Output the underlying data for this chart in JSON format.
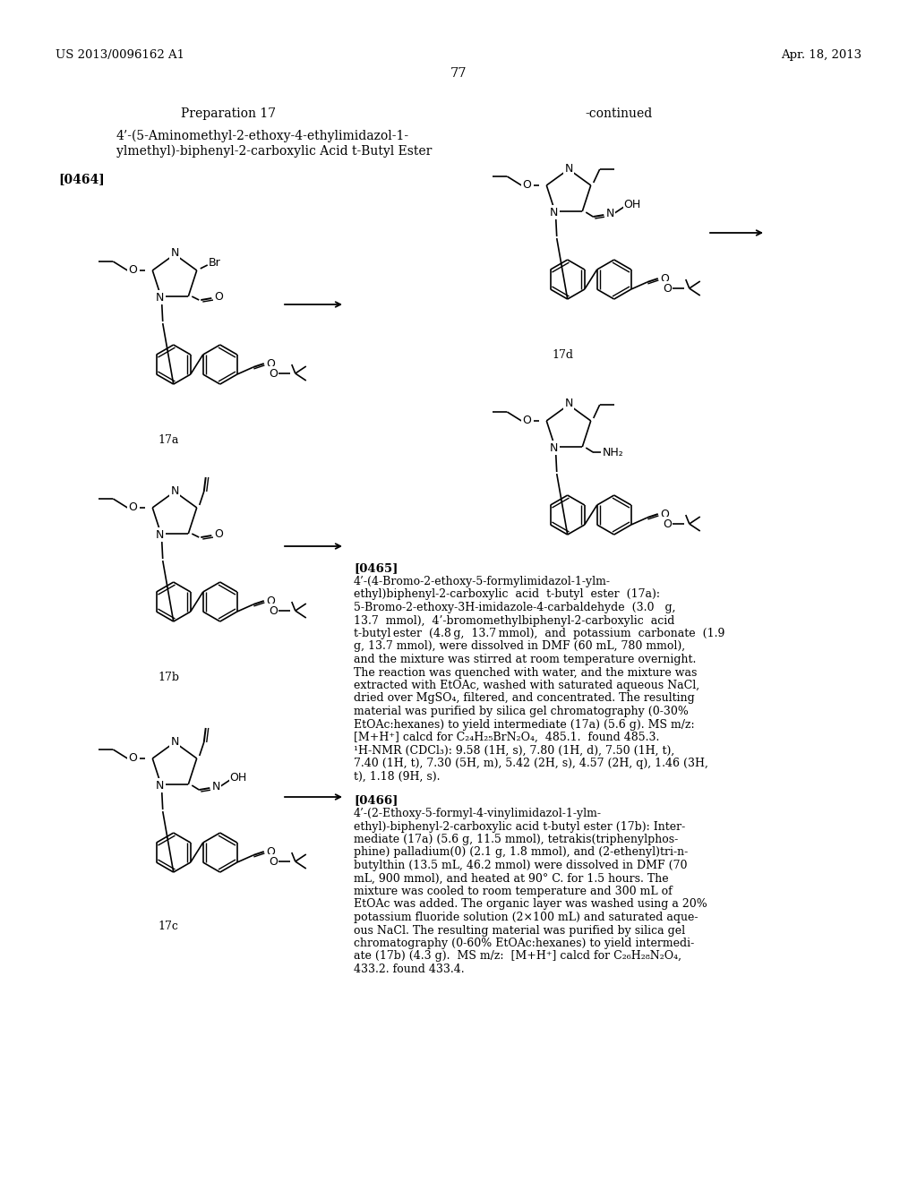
{
  "background_color": "#ffffff",
  "page_number": "77",
  "header_left": "US 2013/0096162 A1",
  "header_right": "Apr. 18, 2013",
  "preparation_title": "Preparation 17",
  "compound_line1": "4’-(5-Aminomethyl-2-ethoxy-4-ethylimidazol-1-",
  "compound_line2": "ylmethyl)-biphenyl-2-carboxylic Acid t-Butyl Ester",
  "paragraph_ref_1": "[0464]",
  "continued_label": "-continued",
  "label_17a": "17a",
  "label_17b": "17b",
  "label_17c": "17c",
  "label_17d": "17d",
  "paragraph_ref_2": "[0465]",
  "paragraph_ref_3": "[0466]",
  "text_0465": "4’-(4-Bromo-2-ethoxy-5-formylimidazol-1-ylm-\nethyl)biphenyl-2-carboxylic  acid  t-butyl  ester  (17a):\n5-Bromo-2-ethoxy-3H-imidazole-4-carbaldehyde  (3.0   g,\n13.7  mmol),  4’-bromomethylbiphenyl-2-carboxylic  acid\nt-butyl ester  (4.8 g,  13.7 mmol),  and  potassium  carbonate  (1.9\ng, 13.7 mmol), were dissolved in DMF (60 mL, 780 mmol),\nand the mixture was stirred at room temperature overnight.\nThe reaction was quenched with water, and the mixture was\nextracted with EtOAc, washed with saturated aqueous NaCl,\ndried over MgSO₄, filtered, and concentrated. The resulting\nmaterial was purified by silica gel chromatography (0-30%\nEtOAc:hexanes) to yield intermediate (17a) (5.6 g). MS m/z:\n[M+H⁺] calcd for C₂₄H₂₅BrN₂O₄,  485.1.  found 485.3.\n¹H-NMR (CDCl₃): 9.58 (1H, s), 7.80 (1H, d), 7.50 (1H, t),\n7.40 (1H, t), 7.30 (5H, m), 5.42 (2H, s), 4.57 (2H, q), 1.46 (3H,\nt), 1.18 (9H, s).",
  "text_0466": "4’-(2-Ethoxy-5-formyl-4-vinylimidazol-1-ylm-\nethyl)-biphenyl-2-carboxylic acid t-butyl ester (17b): Inter-\nmediate (17a) (5.6 g, 11.5 mmol), tetrakis(triphenylphos-\nphine) palladium(0) (2.1 g, 1.8 mmol), and (2-ethenyl)tri-n-\nbutylthin (13.5 mL, 46.2 mmol) were dissolved in DMF (70\nmL, 900 mmol), and heated at 90° C. for 1.5 hours. The\nmixture was cooled to room temperature and 300 mL of\nEtOAc was added. The organic layer was washed using a 20%\npotassium fluoride solution (2×100 mL) and saturated aque-\nous NaCl. The resulting material was purified by silica gel\nchromatography (0-60% EtOAc:hexanes) to yield intermedi-\nate (17b) (4.3 g).  MS m/z:  [M+H⁺] calcd for C₂₆H₂₈N₂O₄,\n433.2. found 433.4."
}
